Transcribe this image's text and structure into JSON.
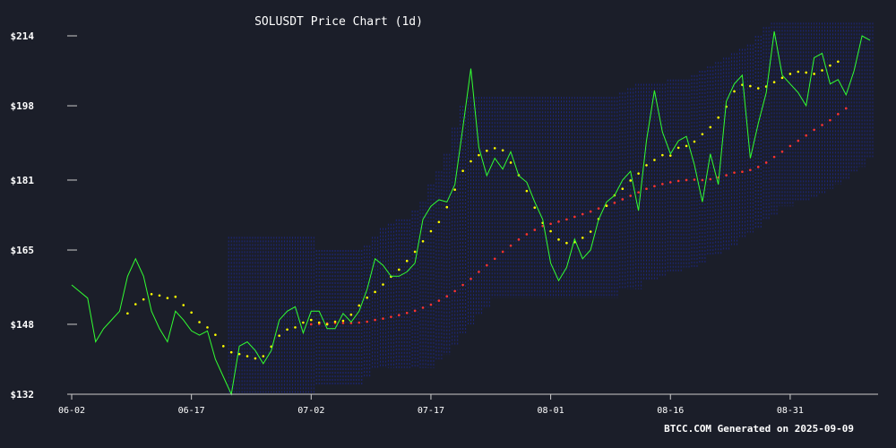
{
  "chart_data": {
    "type": "line",
    "title": "SOLUSDT Price Chart (1d)",
    "footer": "BTCC.COM Generated on 2025-09-09",
    "xlabel": "",
    "ylabel": "",
    "ylim": [
      132,
      217
    ],
    "y_ticks": [
      132,
      148,
      165,
      181,
      198,
      214
    ],
    "y_tick_labels": [
      "$132",
      "$148",
      "$165",
      "$181",
      "$198",
      "$214"
    ],
    "x_tick_labels": [
      "06-02",
      "06-17",
      "07-02",
      "07-17",
      "08-01",
      "08-16",
      "08-31"
    ],
    "x_tick_index": [
      0,
      15,
      30,
      45,
      60,
      75,
      90
    ],
    "grid": false,
    "colors": {
      "background": "#1b1e29",
      "price": "#32ff32",
      "ma_short": "#ffff00",
      "ma_long": "#ff3333",
      "band": "#1c2680",
      "axis": "#cccccc",
      "text": "#ffffff"
    },
    "series": [
      {
        "role": "price",
        "style": "line",
        "values": [
          157,
          155.5,
          154,
          144,
          147,
          149,
          151,
          159,
          163,
          159,
          151,
          147,
          144,
          151,
          149,
          146.5,
          145.5,
          146.5,
          140,
          136,
          132,
          143,
          144,
          142,
          139,
          142,
          149,
          151,
          152,
          146,
          151,
          151,
          147,
          147,
          150.5,
          148.5,
          151,
          156,
          163,
          161.5,
          159,
          159,
          160,
          162,
          172,
          175,
          176.5,
          176,
          180,
          193,
          206.5,
          188.5,
          182,
          186,
          183.5,
          187.5,
          182,
          180.5,
          176,
          172,
          162,
          158,
          161,
          167.5,
          163,
          165,
          172,
          176,
          177.5,
          181,
          183,
          174,
          190,
          201.5,
          192,
          187,
          190,
          191,
          184.5,
          176,
          187,
          180,
          199,
          203,
          205,
          186,
          194,
          201,
          215,
          205,
          203,
          201,
          198,
          209,
          210,
          203,
          204,
          200.5,
          206,
          214,
          213
        ]
      },
      {
        "role": "ma_short",
        "style": "dotted",
        "values": [
          null,
          null,
          null,
          null,
          null,
          null,
          null,
          150.5,
          152.6,
          153.7,
          154.9,
          154.6,
          154,
          154.3,
          152.4,
          150.7,
          148.5,
          147.3,
          145.6,
          143,
          141.6,
          141.2,
          140.7,
          140.2,
          140.7,
          142.9,
          145.4,
          146.8,
          147.3,
          148.4,
          149,
          148.4,
          148,
          148.6,
          148.8,
          150.2,
          152.3,
          154.1,
          155.4,
          157.1,
          158.9,
          160.5,
          162.5,
          164.6,
          167,
          169.3,
          171.4,
          174.8,
          178.8,
          183.1,
          185.3,
          186.7,
          187.7,
          188.3,
          187.8,
          185,
          182.1,
          178.5,
          174.7,
          171.2,
          169.3,
          167.4,
          166.6,
          166.8,
          167.8,
          169.2,
          172.1,
          175.1,
          177.5,
          179,
          180.9,
          182.5,
          184.4,
          185.6,
          186.7,
          186.6,
          188.4,
          188.8,
          189.8,
          191.5,
          193.1,
          195.3,
          197.8,
          201.3,
          202.8,
          202.5,
          202,
          202.4,
          203.4,
          204.4,
          205.3,
          205.8,
          205.6,
          205.3,
          206.1,
          207.2,
          208.1
        ]
      },
      {
        "role": "ma_long",
        "style": "dotted",
        "values": [
          null,
          null,
          null,
          null,
          null,
          null,
          null,
          null,
          null,
          null,
          null,
          null,
          null,
          null,
          null,
          null,
          null,
          null,
          null,
          null,
          null,
          null,
          null,
          null,
          null,
          null,
          null,
          null,
          null,
          null,
          148,
          148.1,
          148.2,
          148.3,
          148.3,
          148.3,
          148.4,
          148.6,
          149,
          149.3,
          149.7,
          150.1,
          150.6,
          151.1,
          151.8,
          152.5,
          153.4,
          154.4,
          155.6,
          157,
          158.4,
          160,
          161.5,
          163,
          164.6,
          166,
          167.4,
          168.6,
          169.6,
          170.5,
          171,
          171.5,
          172,
          172.6,
          173.2,
          173.8,
          174.5,
          175.2,
          175.8,
          176.6,
          177.4,
          178.2,
          179,
          179.6,
          180.1,
          180.5,
          180.8,
          181,
          181.1,
          181,
          181.2,
          181.6,
          182.1,
          182.7,
          182.9,
          183.3,
          184,
          185,
          186.3,
          187.5,
          188.8,
          190,
          191.2,
          192.5,
          193.6,
          194.7,
          196.1,
          197.4
        ]
      }
    ],
    "bands": {
      "role": "envelope",
      "start_index": 20,
      "end_index": 100,
      "ranges": [
        [
          132,
          168
        ],
        [
          132,
          168
        ],
        [
          132,
          168
        ],
        [
          132,
          168
        ],
        [
          132,
          168
        ],
        [
          132,
          168
        ],
        [
          132,
          168
        ],
        [
          132,
          168
        ],
        [
          132,
          168
        ],
        [
          132,
          168
        ],
        [
          132,
          168
        ],
        [
          134,
          165
        ],
        [
          134,
          165
        ],
        [
          134,
          165
        ],
        [
          134,
          165
        ],
        [
          134,
          165
        ],
        [
          134,
          165
        ],
        [
          136,
          166
        ],
        [
          138,
          168
        ],
        [
          138,
          170
        ],
        [
          138,
          171
        ],
        [
          138,
          172
        ],
        [
          138,
          172
        ],
        [
          138,
          174
        ],
        [
          138,
          176
        ],
        [
          138,
          180
        ],
        [
          140,
          183
        ],
        [
          141,
          187
        ],
        [
          143,
          193
        ],
        [
          146,
          198
        ],
        [
          148,
          200
        ],
        [
          150,
          200
        ],
        [
          152,
          200
        ],
        [
          154,
          200
        ],
        [
          154,
          200
        ],
        [
          154,
          200
        ],
        [
          154,
          200
        ],
        [
          154,
          200
        ],
        [
          154,
          200
        ],
        [
          154,
          200
        ],
        [
          154,
          200
        ],
        [
          154,
          200
        ],
        [
          154,
          200
        ],
        [
          154,
          200
        ],
        [
          154,
          200
        ],
        [
          154,
          200
        ],
        [
          154,
          200
        ],
        [
          154,
          200
        ],
        [
          154,
          200
        ],
        [
          156,
          201
        ],
        [
          156,
          202
        ],
        [
          156,
          203
        ],
        [
          158,
          203
        ],
        [
          158,
          203
        ],
        [
          159,
          203
        ],
        [
          160,
          204
        ],
        [
          160,
          204
        ],
        [
          161,
          204
        ],
        [
          161,
          205
        ],
        [
          162,
          206
        ],
        [
          164,
          207
        ],
        [
          164,
          208
        ],
        [
          165,
          209
        ],
        [
          166,
          210
        ],
        [
          168,
          211
        ],
        [
          169,
          212
        ],
        [
          170,
          214
        ],
        [
          172,
          216
        ],
        [
          173,
          217
        ],
        [
          175,
          217
        ],
        [
          175,
          217
        ],
        [
          176,
          217
        ],
        [
          176,
          217
        ],
        [
          177,
          217
        ],
        [
          178,
          217
        ],
        [
          179,
          217
        ],
        [
          180,
          217
        ],
        [
          181,
          217
        ],
        [
          183,
          217
        ],
        [
          184,
          217
        ],
        [
          186,
          217
        ]
      ]
    }
  }
}
